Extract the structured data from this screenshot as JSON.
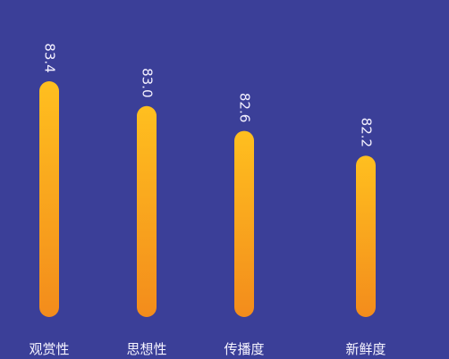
{
  "chart_data": {
    "type": "bar",
    "orientation": "vertical",
    "categories": [
      "观赏性",
      "思想性",
      "传播度",
      "新鲜度"
    ],
    "values": [
      83.4,
      83.0,
      82.6,
      82.2
    ],
    "value_labels": [
      "83.4",
      "83.0",
      "82.6",
      "82.2"
    ],
    "ylim": [
      79.6,
      83.4
    ],
    "grid": false,
    "legend": "none",
    "title": "",
    "xlabel": "",
    "ylabel": ""
  },
  "colors": {
    "background": "#3b3f98",
    "bar_top": "#ffbf1f",
    "bar_bottom": "#f38c1c",
    "label_text": "#f4f1ff"
  }
}
